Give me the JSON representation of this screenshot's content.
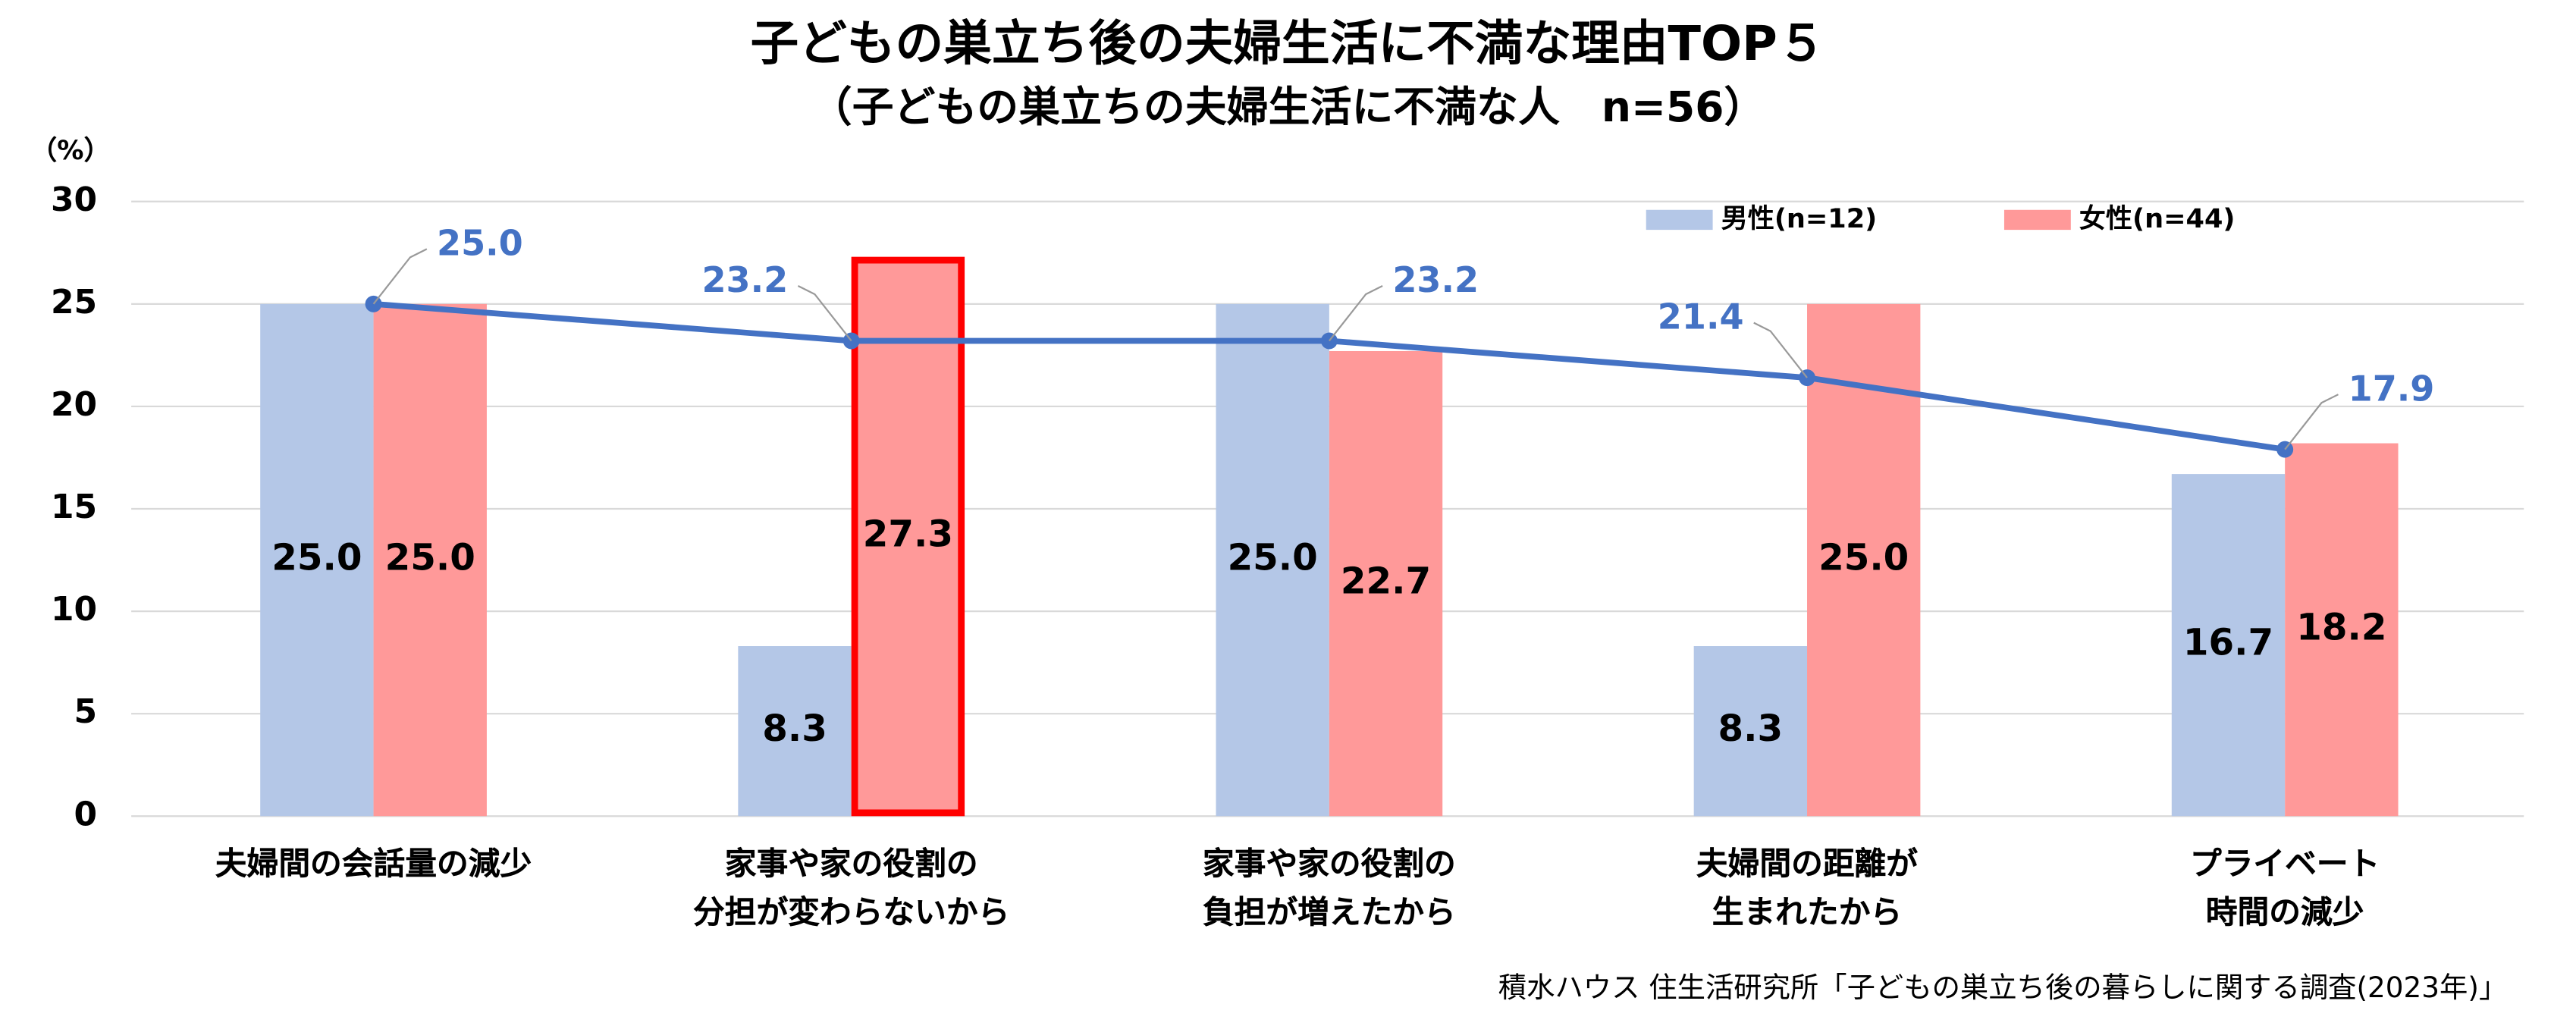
{
  "chart_data": {
    "type": "bar",
    "title": "子どもの巣立ち後の夫婦生活に不満な理由TOP５",
    "subtitle": "（子どもの巣立ちの夫婦生活に不満な人　n=56）",
    "y_unit": "（%）",
    "source": "積水ハウス 住生活研究所「子どもの巣立ち後の暮らしに関する調査(2023年)」",
    "categories": [
      "夫婦間の会話量の減少",
      "家事や家の役割の\n分担が変わらないから",
      "家事や家の役割の\n負担が増えたから",
      "夫婦間の距離が\n生まれたから",
      "プライベート\n時間の減少"
    ],
    "series": [
      {
        "name": "男性(n=12)",
        "color": "#b4c7e7",
        "values": [
          25.0,
          8.3,
          25.0,
          8.3,
          16.7
        ],
        "value_labels": [
          "25.0",
          "8.3",
          "25.0",
          "8.3",
          "16.7"
        ]
      },
      {
        "name": "女性(n=44)",
        "color": "#ff9999",
        "values": [
          25.0,
          27.3,
          22.7,
          25.0,
          18.2
        ],
        "value_labels": [
          "25.0",
          "27.3",
          "22.7",
          "25.0",
          "18.2"
        ]
      },
      {
        "type": "line",
        "color": "#4472c4",
        "values": [
          25.0,
          23.2,
          23.2,
          21.4,
          17.9
        ],
        "value_labels": [
          "25.0",
          "23.2",
          "23.2",
          "21.4",
          "17.9"
        ]
      }
    ],
    "highlight": {
      "series": 1,
      "index": 1,
      "color": "#ff0000"
    },
    "ylim": [
      0,
      30
    ],
    "yticks": [
      0,
      5,
      10,
      15,
      20,
      25,
      30
    ],
    "grid": true,
    "legend": "top-right"
  }
}
